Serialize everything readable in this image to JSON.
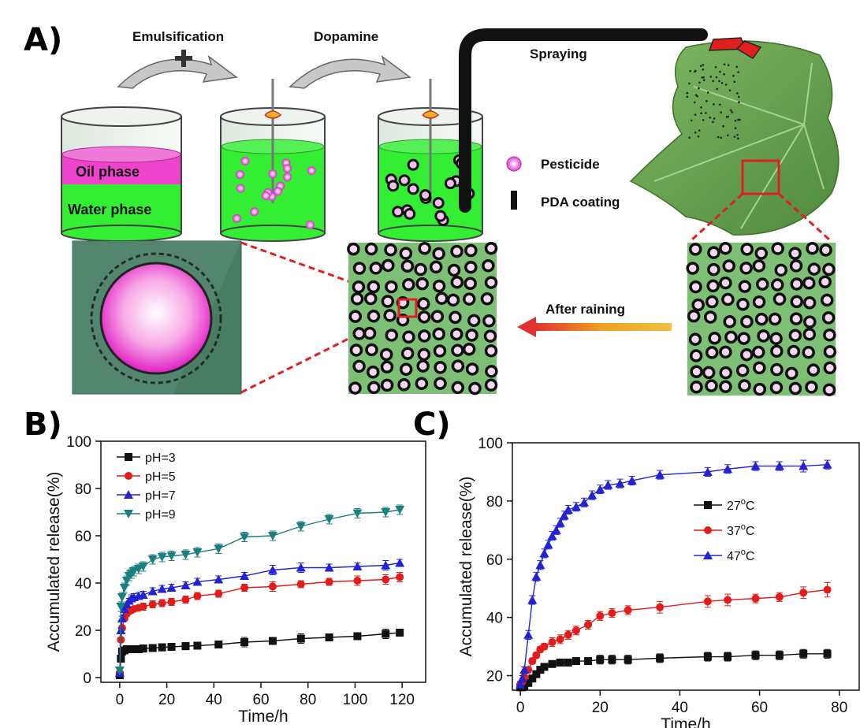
{
  "panel_labels": {
    "a": "A)",
    "b": "B)",
    "c": "C)"
  },
  "schematic": {
    "emulsification": "Emulsification",
    "dopamine": "Dopamine",
    "spraying": "Spraying",
    "oil_phase": "Oil phase",
    "water_phase": "Water phase",
    "pesticide": "Pesticide",
    "pda_coating": "PDA coating",
    "after_raining": "After raining",
    "colors": {
      "oil": "#ee44cc",
      "water": "#33ee33",
      "leaf": "#6aa84f",
      "pda": "#111111",
      "highlight": "#e02020"
    }
  },
  "chart_data": [
    {
      "type": "line",
      "title": "",
      "xlabel": "Time/h",
      "ylabel": "Accumulated release(%)",
      "xlim": [
        -8,
        130
      ],
      "ylim": [
        -2,
        100
      ],
      "xticks": [
        0,
        20,
        40,
        60,
        80,
        100,
        120
      ],
      "yticks": [
        0,
        20,
        40,
        60,
        80,
        100
      ],
      "legend_position": "top-left",
      "error_bars": true,
      "series": [
        {
          "name": "pH=3",
          "color": "#111111",
          "marker": "square",
          "x": [
            0,
            0.5,
            1,
            2,
            3,
            4,
            5,
            6,
            8,
            10,
            14,
            18,
            22,
            28,
            33,
            42,
            53,
            65,
            77,
            89,
            101,
            113,
            119
          ],
          "y": [
            1,
            8,
            11,
            11.5,
            12,
            12,
            12,
            12,
            12,
            12.3,
            12.5,
            12.8,
            13,
            13.3,
            13.5,
            14,
            15,
            15.5,
            16.5,
            17,
            17.5,
            18.5,
            19
          ],
          "err": [
            0.5,
            1,
            1,
            1,
            1,
            1,
            1,
            1,
            1,
            1.5,
            1.5,
            1.5,
            1.5,
            1.5,
            1.5,
            1.5,
            2,
            1.5,
            2,
            1.5,
            1.5,
            2,
            1
          ]
        },
        {
          "name": "pH=5",
          "color": "#e21b1b",
          "marker": "circle",
          "x": [
            0,
            0.5,
            1,
            2,
            3,
            4,
            5,
            6,
            8,
            10,
            14,
            18,
            22,
            28,
            33,
            42,
            53,
            65,
            77,
            89,
            101,
            113,
            119
          ],
          "y": [
            2,
            16,
            21,
            25,
            27,
            28,
            28.5,
            29,
            29.5,
            30,
            31,
            31.5,
            32,
            33,
            34.5,
            35.5,
            38,
            38.5,
            39.5,
            40.5,
            41,
            41.5,
            42.5
          ],
          "err": [
            0.5,
            1,
            1,
            1,
            1,
            1,
            1,
            1,
            1,
            1.5,
            1.5,
            1.5,
            1.5,
            1.5,
            1.5,
            1.5,
            1.5,
            2,
            1.5,
            1.5,
            2,
            2,
            2
          ]
        },
        {
          "name": "pH=7",
          "color": "#2323d4",
          "marker": "triangle-up",
          "x": [
            0,
            0.5,
            1,
            2,
            3,
            4,
            5,
            6,
            8,
            10,
            14,
            18,
            22,
            28,
            33,
            42,
            53,
            65,
            77,
            89,
            101,
            113,
            119
          ],
          "y": [
            2,
            20,
            25,
            29,
            31,
            32.5,
            33.5,
            34,
            34.5,
            35,
            36.5,
            37.5,
            38,
            39,
            40.5,
            41.5,
            43,
            45.5,
            46.5,
            46.5,
            47,
            47.5,
            48.5
          ],
          "err": [
            0.5,
            1,
            1,
            1,
            1,
            1,
            1.5,
            1.5,
            1.5,
            1.5,
            1.5,
            1.5,
            1.5,
            1.5,
            1.5,
            1.5,
            1.5,
            2,
            2,
            1.5,
            1.5,
            2,
            1.5
          ]
        },
        {
          "name": "pH=9",
          "color": "#1b7f7f",
          "marker": "triangle-down",
          "x": [
            0,
            0.5,
            1,
            2,
            3,
            4,
            5,
            6,
            8,
            10,
            14,
            18,
            22,
            28,
            33,
            42,
            53,
            65,
            77,
            89,
            101,
            113,
            119
          ],
          "y": [
            3,
            30,
            34,
            38,
            41,
            43,
            44,
            45,
            46,
            47,
            50,
            51,
            51.5,
            52,
            53,
            54.5,
            59.5,
            60,
            64,
            67,
            69.5,
            70,
            71
          ],
          "err": [
            0.5,
            2,
            2,
            2,
            2,
            2,
            2,
            2,
            2,
            2,
            2,
            2,
            2,
            2,
            2,
            2,
            2,
            2,
            2,
            2,
            2,
            2,
            2
          ]
        }
      ]
    },
    {
      "type": "line",
      "title": "",
      "xlabel": "Time/h",
      "ylabel": "Accumulated release(%)",
      "xlim": [
        -2,
        85
      ],
      "ylim": [
        15,
        100
      ],
      "xticks": [
        0,
        20,
        40,
        60,
        80
      ],
      "yticks": [
        20,
        40,
        60,
        80,
        100
      ],
      "legend_position": "center-right",
      "error_bars": true,
      "series": [
        {
          "name": "27",
          "unit_sup": "o",
          "unit": "C",
          "color": "#111111",
          "marker": "square",
          "x": [
            0,
            0.5,
            1,
            2,
            3,
            4,
            5,
            6,
            8,
            10,
            12,
            14,
            17,
            20,
            23,
            27,
            35,
            47,
            52,
            59,
            65,
            71,
            77
          ],
          "y": [
            16,
            16,
            16.5,
            17.5,
            19,
            20.5,
            22,
            23,
            24,
            24.5,
            24.5,
            25,
            25,
            25.5,
            25.5,
            25.5,
            26,
            26.5,
            26.5,
            27,
            27,
            27.5,
            27.5
          ],
          "err": [
            1,
            1,
            1,
            1,
            1,
            1,
            1,
            1,
            1,
            1,
            1,
            1,
            1,
            1.5,
            1.5,
            1.5,
            1.5,
            1.5,
            1.5,
            1.5,
            1.5,
            1.5,
            1.5
          ]
        },
        {
          "name": "37",
          "unit_sup": "o",
          "unit": "C",
          "color": "#e21b1b",
          "marker": "circle",
          "x": [
            0,
            0.5,
            1,
            2,
            3,
            4,
            5,
            6,
            8,
            10,
            12,
            14,
            17,
            20,
            23,
            27,
            35,
            47,
            52,
            59,
            65,
            71,
            77
          ],
          "y": [
            17,
            18,
            19.5,
            22,
            25,
            27,
            29,
            30,
            31.5,
            32.5,
            34,
            35.5,
            37.5,
            40.5,
            41.5,
            42.5,
            43.5,
            45.5,
            46,
            46.5,
            47,
            48.5,
            49.5
          ],
          "err": [
            1,
            1,
            1,
            1,
            1,
            1,
            1,
            1,
            1.5,
            1.5,
            1.5,
            1.5,
            1.5,
            1.5,
            1.5,
            1.5,
            2,
            2,
            2,
            1.5,
            1.5,
            2,
            2.5
          ]
        },
        {
          "name": "47",
          "unit_sup": "o",
          "unit": "C",
          "color": "#2323d4",
          "marker": "triangle-up",
          "x": [
            0,
            0.5,
            1,
            2,
            3,
            4,
            5,
            6,
            7,
            8,
            9,
            10,
            11,
            12,
            14,
            16,
            18,
            20,
            22,
            25,
            28,
            35,
            47,
            52,
            59,
            65,
            71,
            77
          ],
          "y": [
            17,
            19,
            22,
            34,
            46,
            54,
            58,
            62,
            65,
            68,
            70,
            72.5,
            75,
            77,
            78,
            79.5,
            82,
            84,
            85.5,
            86,
            87,
            89,
            90,
            91,
            92,
            92,
            92,
            92.5
          ],
          "err": [
            1,
            1,
            1,
            1.5,
            1.5,
            1.5,
            1.5,
            1.5,
            1.5,
            1.5,
            1.5,
            1.5,
            1.5,
            1.5,
            1.5,
            1.5,
            1.5,
            1.5,
            1.5,
            1.5,
            1.5,
            1.5,
            1.5,
            1.5,
            1.5,
            1.5,
            2,
            1.5
          ]
        }
      ]
    }
  ]
}
